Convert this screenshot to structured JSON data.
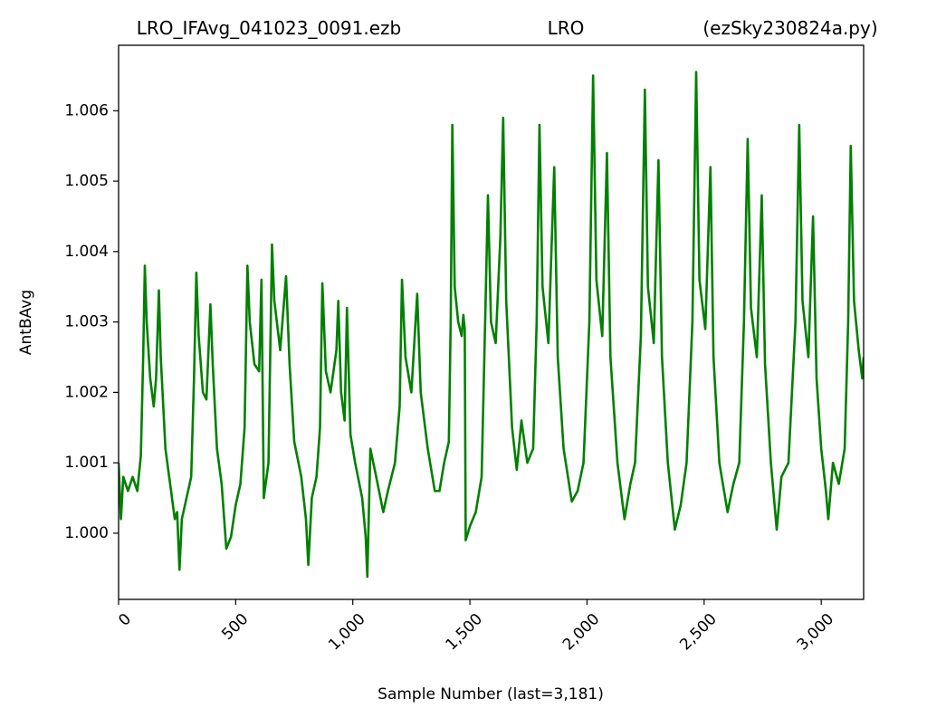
{
  "chart_data": {
    "type": "line",
    "title_left": "LRO_IFAvg_041023_0091.ezb",
    "title_center": "LRO",
    "title_right": "(ezSky230824a.py)",
    "x_label": "Sample Number (last=3,181)",
    "y_label": "AntBAvg",
    "xlim": [
      0,
      3181
    ],
    "ylim": [
      0.99906,
      1.00693
    ],
    "xticks": [
      0,
      500,
      {
        "value": 1000,
        "label": "1,000"
      },
      {
        "value": 1500,
        "label": "1,500"
      },
      {
        "value": 2000,
        "label": "2,000"
      },
      {
        "value": 2500,
        "label": "2,500"
      },
      {
        "value": 3000,
        "label": "3,000"
      }
    ],
    "yticks": [
      {
        "value": 1.0,
        "label": "1.000"
      },
      {
        "value": 1.001,
        "label": "1.001"
      },
      {
        "value": 1.002,
        "label": "1.002"
      },
      {
        "value": 1.003,
        "label": "1.003"
      },
      {
        "value": 1.004,
        "label": "1.004"
      },
      {
        "value": 1.005,
        "label": "1.005"
      },
      {
        "value": 1.006,
        "label": "1.006"
      }
    ],
    "series": [
      {
        "color": "#008000",
        "x": [
          0,
          10,
          20,
          40,
          60,
          80,
          95,
          105,
          112,
          120,
          135,
          150,
          160,
          172,
          180,
          200,
          220,
          240,
          250,
          260,
          270,
          290,
          310,
          322,
          332,
          342,
          360,
          375,
          392,
          402,
          420,
          440,
          460,
          480,
          500,
          520,
          538,
          550,
          560,
          580,
          600,
          610,
          620,
          640,
          655,
          665,
          690,
          715,
          730,
          750,
          780,
          800,
          810,
          825,
          845,
          860,
          870,
          885,
          905,
          930,
          938,
          950,
          965,
          975,
          990,
          1010,
          1040,
          1055,
          1062,
          1075,
          1100,
          1130,
          1150,
          1180,
          1200,
          1210,
          1225,
          1250,
          1275,
          1290,
          1320,
          1350,
          1370,
          1390,
          1410,
          1418,
          1425,
          1435,
          1450,
          1465,
          1472,
          1478,
          1482,
          1500,
          1525,
          1550,
          1565,
          1577,
          1590,
          1610,
          1630,
          1642,
          1655,
          1680,
          1700,
          1720,
          1745,
          1770,
          1785,
          1797,
          1810,
          1835,
          1860,
          1875,
          1900,
          1935,
          1960,
          1985,
          2010,
          2026,
          2040,
          2065,
          2085,
          2100,
          2130,
          2160,
          2185,
          2205,
          2230,
          2247,
          2260,
          2285,
          2305,
          2320,
          2345,
          2375,
          2400,
          2425,
          2450,
          2466,
          2480,
          2505,
          2527,
          2540,
          2565,
          2600,
          2625,
          2650,
          2670,
          2686,
          2700,
          2725,
          2746,
          2760,
          2785,
          2810,
          2830,
          2860,
          2890,
          2906,
          2920,
          2945,
          2965,
          2980,
          3000,
          3020,
          3030,
          3050,
          3075,
          3100,
          3115,
          3126,
          3140,
          3160,
          3175,
          3181
        ],
        "values": [
          1.001,
          1.0002,
          1.0008,
          1.0006,
          1.0008,
          1.0006,
          1.0011,
          1.0025,
          1.0038,
          1.003,
          1.0022,
          1.0018,
          1.0022,
          1.00345,
          1.0025,
          1.0012,
          1.0007,
          1.0002,
          1.0003,
          0.99948,
          1.0002,
          1.0005,
          1.0008,
          1.0022,
          1.0037,
          1.0028,
          1.002,
          1.0019,
          1.00325,
          1.0024,
          1.0012,
          1.0007,
          0.99978,
          0.99995,
          1.0004,
          1.0007,
          1.0015,
          1.0038,
          1.003,
          1.0024,
          1.0023,
          1.0036,
          1.0005,
          1.001,
          1.0041,
          1.0033,
          1.0026,
          1.00365,
          1.0024,
          1.0013,
          1.0008,
          1.0002,
          0.99955,
          1.0005,
          1.0008,
          1.0015,
          1.00355,
          1.0023,
          1.002,
          1.0026,
          1.0033,
          1.002,
          1.0016,
          1.0032,
          1.0014,
          1.001,
          1.0005,
          0.99995,
          0.99938,
          1.0012,
          1.0008,
          1.0003,
          1.0006,
          1.001,
          1.0018,
          1.0036,
          1.0025,
          1.002,
          1.0034,
          1.002,
          1.0012,
          1.0006,
          1.0006,
          1.001,
          1.0013,
          1.003,
          1.0058,
          1.0035,
          1.003,
          1.0028,
          1.0031,
          1.0029,
          0.9999,
          1.0001,
          1.0003,
          1.0008,
          1.003,
          1.0048,
          1.003,
          1.0027,
          1.0042,
          1.0059,
          1.0033,
          1.0015,
          1.0009,
          1.0016,
          1.001,
          1.0012,
          1.003,
          1.0058,
          1.0035,
          1.0027,
          1.0052,
          1.0025,
          1.0012,
          1.00045,
          1.0006,
          1.001,
          1.003,
          1.0065,
          1.0036,
          1.0028,
          1.0054,
          1.0025,
          1.001,
          1.0002,
          1.0007,
          1.001,
          1.0028,
          1.0063,
          1.0035,
          1.0027,
          1.0053,
          1.0025,
          1.001,
          1.00005,
          1.0004,
          1.001,
          1.003,
          1.00655,
          1.0036,
          1.0029,
          1.0052,
          1.0025,
          1.001,
          1.0003,
          1.0007,
          1.001,
          1.003,
          1.0056,
          1.0032,
          1.0025,
          1.0048,
          1.0024,
          1.001,
          1.00005,
          1.0008,
          1.001,
          1.003,
          1.0058,
          1.0033,
          1.0025,
          1.0045,
          1.0022,
          1.0012,
          1.0006,
          1.0002,
          1.001,
          1.0007,
          1.0012,
          1.003,
          1.0055,
          1.0033,
          1.0026,
          1.0022,
          1.0025
        ]
      }
    ]
  }
}
